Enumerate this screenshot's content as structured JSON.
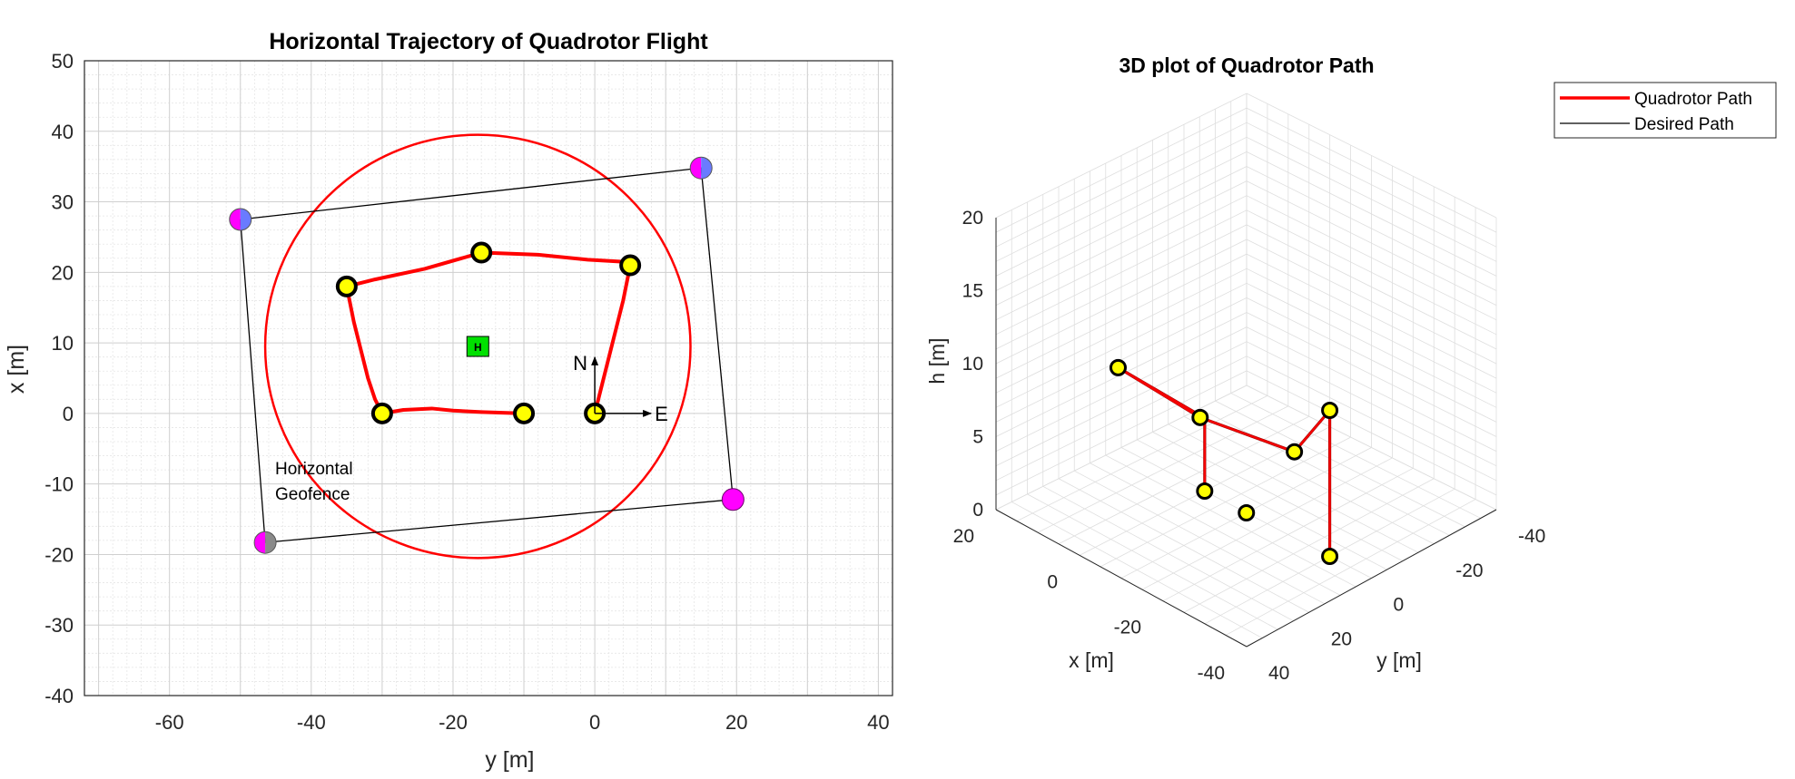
{
  "colors": {
    "actual_path": "#ff0000",
    "desired_path": "#000000",
    "geofence_circle": "#ff0000",
    "waypoint_fill": "#ffff00",
    "waypoint_edge": "#000000",
    "corner_magenta": "#ff00ff",
    "corner_blue": "#6a7bff",
    "home_marker": "#00e000",
    "grid": "#d9d9d9"
  },
  "chart_data": [
    {
      "type": "line",
      "title": "Horizontal Trajectory of Quadrotor Flight",
      "xlabel": "y [m]",
      "ylabel": "x [m]",
      "xlim": [
        -72,
        42
      ],
      "ylim": [
        -40,
        50
      ],
      "xticks": [
        -60,
        -40,
        -20,
        0,
        20,
        40
      ],
      "yticks": [
        50,
        40,
        30,
        20,
        10,
        0,
        -10,
        -20,
        -30,
        -40
      ],
      "grid": "major and minor",
      "series": [
        {
          "role": "actual path",
          "x": [
            0,
            1,
            2,
            3,
            4,
            5,
            4,
            -1,
            -8,
            -16,
            -24,
            -31,
            -35,
            -34,
            -33,
            -32,
            -31,
            -30,
            -27,
            -23,
            -20,
            -16,
            -10
          ],
          "y": [
            0,
            4,
            8,
            12,
            16,
            21,
            21.5,
            21.8,
            22.5,
            22.8,
            20.5,
            19,
            18,
            13,
            9,
            5,
            2,
            0,
            0.5,
            0.7,
            0.4,
            0.2,
            0
          ]
        },
        {
          "role": "geofence polygon",
          "x": [
            -50,
            15,
            19.5,
            -46.5,
            -50
          ],
          "y": [
            27.5,
            34.8,
            -12.2,
            -18.3,
            27.5
          ]
        }
      ],
      "waypoints": {
        "x": [
          0,
          5,
          -16,
          -35,
          -30,
          -10
        ],
        "y": [
          0,
          21,
          22.8,
          18,
          0,
          0
        ]
      },
      "polygon_corners": [
        {
          "x": -50,
          "y": 27.5,
          "color": "magenta-blue"
        },
        {
          "x": 15,
          "y": 34.8,
          "color": "magenta-blue"
        },
        {
          "x": 19.5,
          "y": -12.2,
          "color": "magenta"
        },
        {
          "x": -46.5,
          "y": -18.3,
          "color": "magenta-gray"
        }
      ],
      "circle": {
        "center_x": -16.5,
        "center_y": 9.5,
        "radius": 30
      },
      "home": {
        "x": -16.5,
        "y": 9.5,
        "label": "H"
      },
      "compass": {
        "origin_x": 0,
        "origin_y": 0,
        "north_label": "N",
        "east_label": "E"
      },
      "annotations": [
        "Horizontal",
        "Geofence"
      ]
    },
    {
      "type": "line",
      "title": "3D plot of Quadrotor Path",
      "xlabel": "x [m]",
      "ylabel": "y [m]",
      "zlabel": "h [m]",
      "xlim": [
        -40,
        20
      ],
      "ylim": [
        -40,
        40
      ],
      "zlim": [
        0,
        20
      ],
      "xticks": [
        20,
        0,
        -20,
        -40
      ],
      "yticks": [
        -40,
        -20,
        0,
        20,
        40
      ],
      "zticks": [
        20,
        15,
        10,
        5,
        0
      ],
      "grid": "on",
      "legend": {
        "position": "top-right",
        "entries": [
          "Quadrotor Path",
          "Desired Path"
        ]
      },
      "series": [
        {
          "name": "Quadrotor Path",
          "x": [
            0,
            0,
            5,
            -16,
            -35,
            -30,
            -30
          ],
          "y": [
            0,
            0,
            21,
            22.8,
            18,
            0,
            0
          ],
          "z": [
            0,
            5,
            10,
            10,
            10,
            10,
            0
          ]
        },
        {
          "name": "Desired Path",
          "x": [
            0,
            0,
            5,
            -16,
            -35,
            -30,
            -30
          ],
          "y": [
            0,
            0,
            21,
            22.8,
            18,
            0,
            0
          ],
          "z": [
            0,
            5,
            10,
            10,
            10,
            10,
            0
          ]
        }
      ]
    }
  ]
}
